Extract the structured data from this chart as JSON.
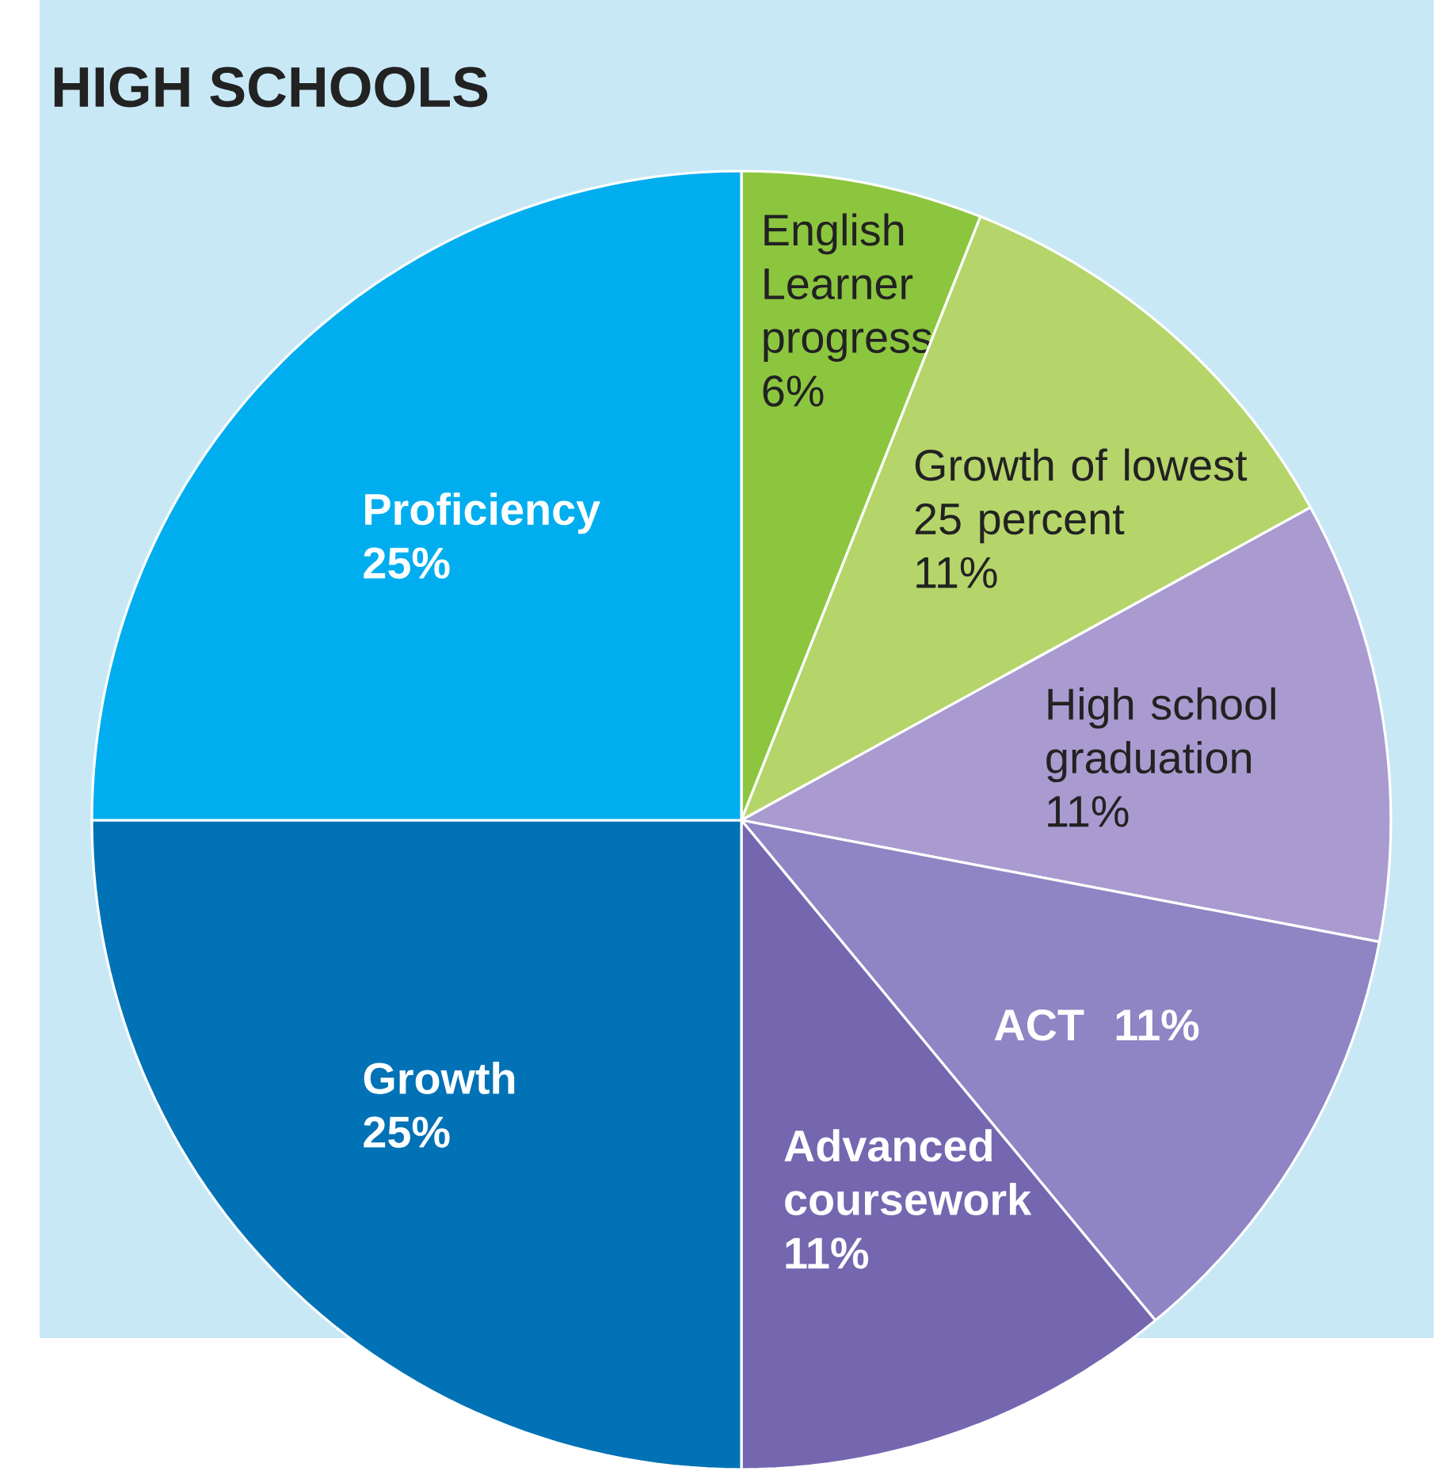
{
  "chart_data": {
    "type": "pie",
    "title": "HIGH SCHOOLS",
    "categories": [
      "English Learner progress",
      "Growth of lowest 25 percent",
      "High school graduation",
      "ACT",
      "Advanced coursework",
      "Growth",
      "Proficiency"
    ],
    "values": [
      6,
      11,
      11,
      11,
      11,
      25,
      25
    ],
    "value_labels": [
      "6%",
      "11%",
      "11%",
      "11%",
      "11%",
      "25%",
      "25%"
    ],
    "colors": [
      "#8cc63f",
      "#b5d56a",
      "#a99bd0",
      "#8f84c4",
      "#7566b0",
      "#0072b5",
      "#00aeef"
    ]
  }
}
